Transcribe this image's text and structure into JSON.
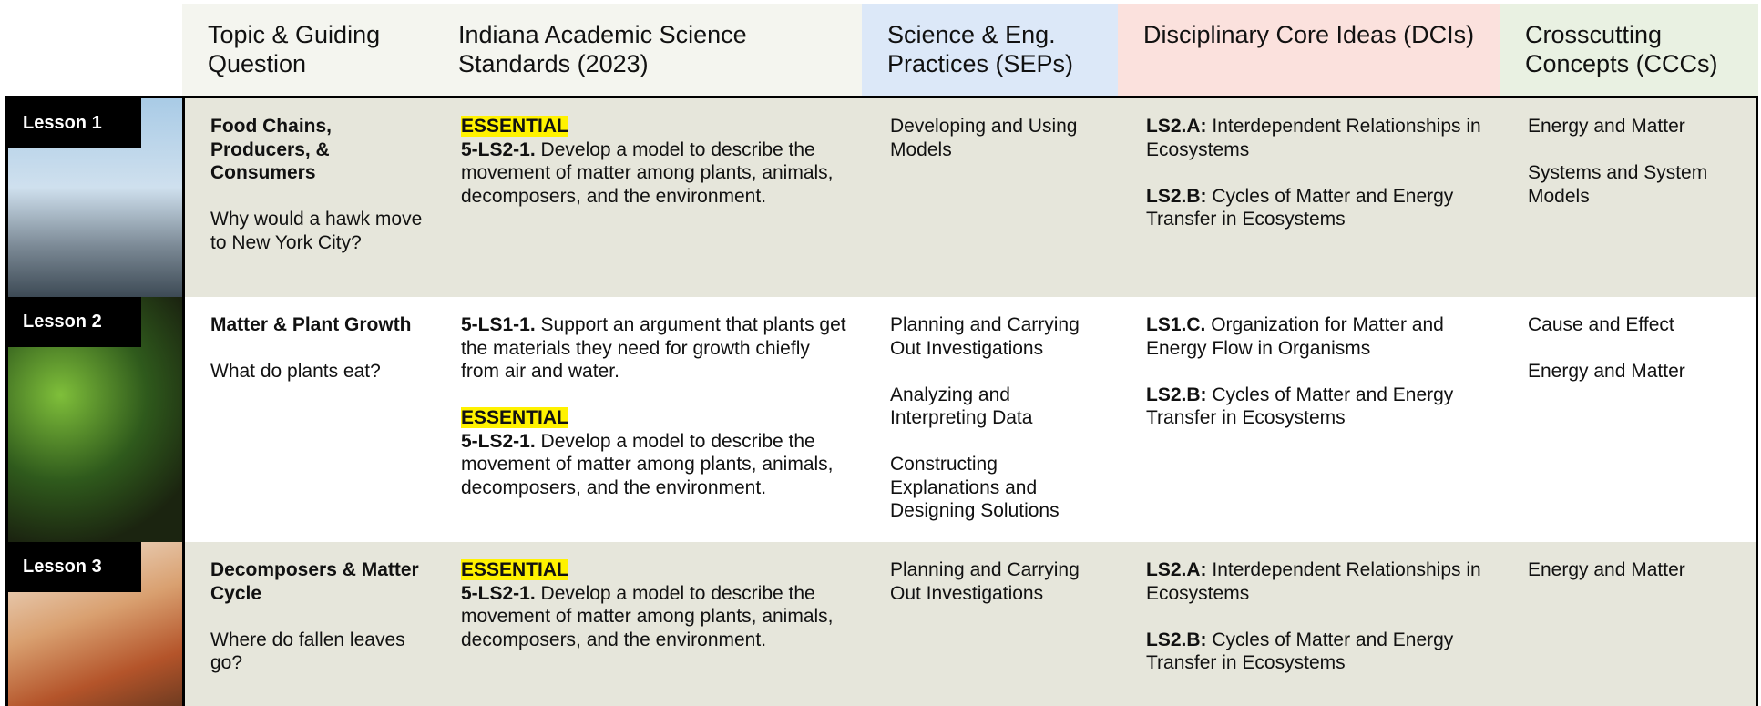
{
  "header": {
    "columns": [
      "Topic & Guiding Question",
      "Indiana Academic Science Standards (2023)",
      "Science & Eng. Practices (SEPs)",
      "Disciplinary Core Ideas (DCIs)",
      "Crosscutting Concepts (CCCs)"
    ]
  },
  "lessons": [
    {
      "label": "Lesson 1",
      "topic": "Food Chains, Producers, & Consumers",
      "question": "Why would a hawk move to New York City?",
      "standards": [
        {
          "tag": "ESSENTIAL",
          "code": "5-LS2-1.",
          "text": "Develop a model to describe the movement of matter among plants, animals, decomposers, and the environment."
        }
      ],
      "seps": [
        "Developing and Using Models"
      ],
      "dcis": [
        {
          "code": "LS2.A:",
          "text": "Interdependent Relationships in Ecosystems"
        },
        {
          "code": "LS2.B:",
          "text": "Cycles of Matter and Energy Transfer in Ecosystems"
        }
      ],
      "cccs": [
        "Energy and Matter",
        "Systems and System Models"
      ]
    },
    {
      "label": "Lesson 2",
      "topic": "Matter & Plant Growth",
      "question": "What do plants eat?",
      "standards": [
        {
          "code": "5-LS1-1.",
          "text": "Support an argument that plants get the materials they need for growth chiefly from air and water."
        },
        {
          "tag": "ESSENTIAL",
          "code": "5-LS2-1.",
          "text": "Develop a model to describe the movement of matter among plants, animals, decomposers, and the environment."
        }
      ],
      "seps": [
        "Planning and Carrying Out Investigations",
        "Analyzing and Interpreting Data",
        "Constructing Explanations and Designing Solutions"
      ],
      "dcis": [
        {
          "code": "LS1.C.",
          "text": "Organization for Matter and Energy Flow in Organisms"
        },
        {
          "code": "LS2.B:",
          "text": "Cycles of Matter and Energy Transfer in Ecosystems"
        }
      ],
      "cccs": [
        "Cause and Effect",
        "Energy and Matter"
      ]
    },
    {
      "label": "Lesson 3",
      "topic": "Decomposers & Matter Cycle",
      "question": "Where do fallen leaves go?",
      "standards": [
        {
          "tag": "ESSENTIAL",
          "code": "5-LS2-1.",
          "text": "Develop a model to describe the movement of matter among plants, animals, decomposers, and the environment."
        }
      ],
      "seps": [
        "Planning and Carrying Out Investigations"
      ],
      "dcis": [
        {
          "code": "LS2.A:",
          "text": "Interdependent Relationships in Ecosystems"
        },
        {
          "code": "LS2.B:",
          "text": "Cycles of Matter and Energy Transfer in Ecosystems"
        }
      ],
      "cccs": [
        "Energy and Matter"
      ]
    }
  ]
}
